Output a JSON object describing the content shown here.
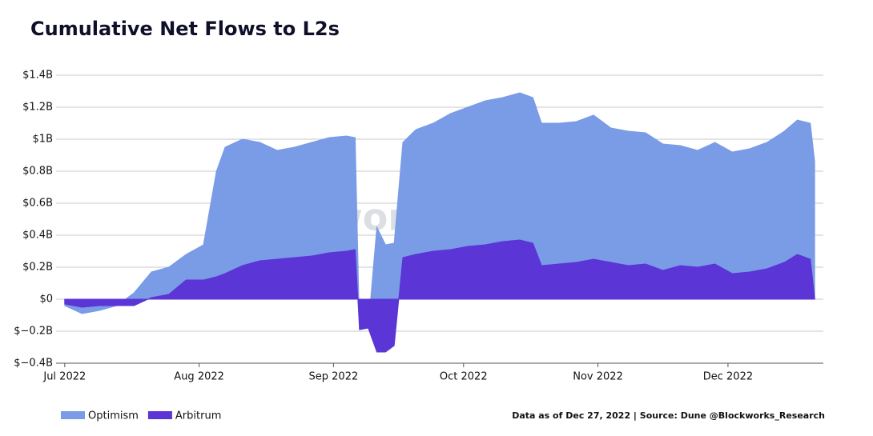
{
  "chart_data": {
    "type": "area",
    "title": "Cumulative Net Flows to L2s",
    "watermark": "Blockworks Research",
    "footnote": "Data as of Dec 27, 2022 | Source: Dune @Blockworks_Research",
    "x": [
      "2022-07-01",
      "2022-07-05",
      "2022-07-09",
      "2022-07-13",
      "2022-07-17",
      "2022-07-21",
      "2022-07-25",
      "2022-07-29",
      "2022-08-02",
      "2022-08-05",
      "2022-08-07",
      "2022-08-11",
      "2022-08-15",
      "2022-08-19",
      "2022-08-23",
      "2022-08-27",
      "2022-08-31",
      "2022-09-04",
      "2022-09-06",
      "2022-09-07",
      "2022-09-09",
      "2022-09-11",
      "2022-09-13",
      "2022-09-15",
      "2022-09-17",
      "2022-09-20",
      "2022-09-24",
      "2022-09-28",
      "2022-10-02",
      "2022-10-06",
      "2022-10-10",
      "2022-10-14",
      "2022-10-17",
      "2022-10-19",
      "2022-10-23",
      "2022-10-27",
      "2022-10-31",
      "2022-11-04",
      "2022-11-08",
      "2022-11-12",
      "2022-11-16",
      "2022-11-20",
      "2022-11-24",
      "2022-11-28",
      "2022-12-02",
      "2022-12-06",
      "2022-12-10",
      "2022-12-14",
      "2022-12-17",
      "2022-12-20",
      "2022-12-21"
    ],
    "series": [
      {
        "name": "Optimism",
        "color": "#7a9be6",
        "values": [
          -0.04,
          -0.09,
          -0.07,
          -0.04,
          0.04,
          0.17,
          0.2,
          0.28,
          0.34,
          0.8,
          0.95,
          1.0,
          0.98,
          0.93,
          0.95,
          0.98,
          1.01,
          1.02,
          1.01,
          -0.19,
          -0.18,
          0.45,
          0.34,
          0.35,
          0.98,
          1.06,
          1.1,
          1.16,
          1.2,
          1.24,
          1.26,
          1.29,
          1.26,
          1.1,
          1.1,
          1.11,
          1.15,
          1.07,
          1.05,
          1.04,
          0.97,
          0.96,
          0.93,
          0.98,
          0.92,
          0.94,
          0.98,
          1.05,
          1.12,
          1.1,
          0.86
        ]
      },
      {
        "name": "Arbitrum",
        "color": "#5b35d6",
        "values": [
          -0.03,
          -0.05,
          -0.04,
          -0.04,
          -0.04,
          0.01,
          0.03,
          0.12,
          0.12,
          0.14,
          0.16,
          0.21,
          0.24,
          0.25,
          0.26,
          0.27,
          0.29,
          0.3,
          0.31,
          -0.19,
          -0.18,
          -0.33,
          -0.33,
          -0.29,
          0.26,
          0.28,
          0.3,
          0.31,
          0.33,
          0.34,
          0.36,
          0.37,
          0.35,
          0.21,
          0.22,
          0.23,
          0.25,
          0.23,
          0.21,
          0.22,
          0.18,
          0.21,
          0.2,
          0.22,
          0.16,
          0.17,
          0.19,
          0.23,
          0.28,
          0.25,
          0.01
        ]
      }
    ],
    "xlim": [
      "2022-06-29",
      "2022-12-23"
    ],
    "xticks": [
      {
        "value": "2022-07-01",
        "label": "Jul 2022"
      },
      {
        "value": "2022-08-01",
        "label": "Aug 2022"
      },
      {
        "value": "2022-09-01",
        "label": "Sep 2022"
      },
      {
        "value": "2022-10-01",
        "label": "Oct 2022"
      },
      {
        "value": "2022-11-01",
        "label": "Nov 2022"
      },
      {
        "value": "2022-12-01",
        "label": "Dec 2022"
      }
    ],
    "ylim": [
      -0.4,
      1.4
    ],
    "yticks": [
      {
        "value": -0.4,
        "label": "$−0.4B"
      },
      {
        "value": -0.2,
        "label": "$−0.2B"
      },
      {
        "value": 0,
        "label": "$0"
      },
      {
        "value": 0.2,
        "label": "$0.2B"
      },
      {
        "value": 0.4,
        "label": "$0.4B"
      },
      {
        "value": 0.6,
        "label": "$0.6B"
      },
      {
        "value": 0.8,
        "label": "$0.8B"
      },
      {
        "value": 1,
        "label": "$1B"
      },
      {
        "value": 1.2,
        "label": "$1.2B"
      },
      {
        "value": 1.4,
        "label": "$1.4B"
      }
    ],
    "grid": true,
    "legend": "bottom-left"
  }
}
